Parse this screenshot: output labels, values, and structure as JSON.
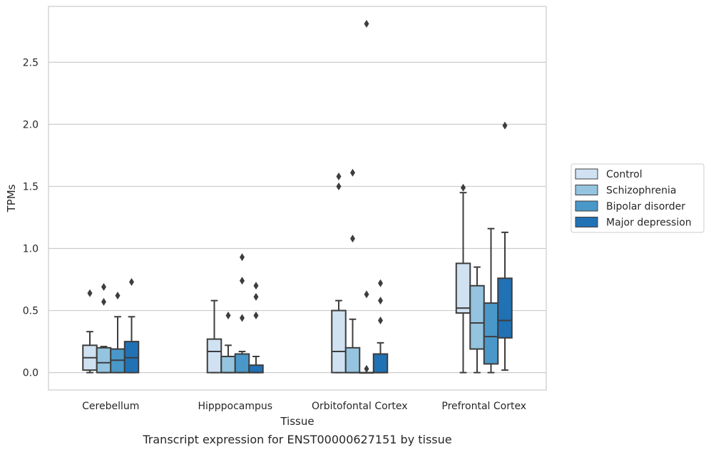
{
  "chart_data": {
    "type": "box",
    "title": "",
    "caption": "Transcript expression for ENST00000627151 by tissue",
    "xlabel": "Tissue",
    "ylabel": "TPMs",
    "ylim": [
      -0.14,
      2.95
    ],
    "yticks": [
      0.0,
      0.5,
      1.0,
      1.5,
      2.0,
      2.5
    ],
    "ytick_labels": [
      "0.0",
      "0.5",
      "1.0",
      "1.5",
      "2.0",
      "2.5"
    ],
    "grid": "horizontal",
    "legend_position": "right",
    "categories": [
      "Cerebellum",
      "Hipppocampus",
      "Orbitofontal Cortex",
      "Prefrontal Cortex"
    ],
    "series": [
      {
        "name": "Control",
        "color": "#d0e1f2",
        "boxes": [
          {
            "whislo": 0.0,
            "q1": 0.02,
            "med": 0.12,
            "q3": 0.22,
            "whishi": 0.33,
            "fliers": [
              0.64
            ]
          },
          {
            "whislo": 0.0,
            "q1": 0.0,
            "med": 0.17,
            "q3": 0.27,
            "whishi": 0.58,
            "fliers": []
          },
          {
            "whislo": 0.0,
            "q1": 0.0,
            "med": 0.17,
            "q3": 0.5,
            "whishi": 0.58,
            "fliers": [
              1.5,
              1.58
            ]
          },
          {
            "whislo": 0.0,
            "q1": 0.48,
            "med": 0.52,
            "q3": 0.88,
            "whishi": 1.45,
            "fliers": [
              1.49
            ]
          }
        ]
      },
      {
        "name": "Schizophrenia",
        "color": "#94c4df",
        "boxes": [
          {
            "whislo": 0.0,
            "q1": 0.0,
            "med": 0.08,
            "q3": 0.2,
            "whishi": 0.21,
            "fliers": [
              0.57,
              0.69
            ]
          },
          {
            "whislo": 0.0,
            "q1": 0.0,
            "med": 0.0,
            "q3": 0.13,
            "whishi": 0.22,
            "fliers": [
              0.46
            ]
          },
          {
            "whislo": 0.0,
            "q1": 0.0,
            "med": 0.0,
            "q3": 0.2,
            "whishi": 0.43,
            "fliers": [
              1.08,
              1.61
            ]
          },
          {
            "whislo": 0.0,
            "q1": 0.19,
            "med": 0.4,
            "q3": 0.7,
            "whishi": 0.85,
            "fliers": []
          }
        ]
      },
      {
        "name": "Bipolar disorder",
        "color": "#4a98c9",
        "boxes": [
          {
            "whislo": 0.0,
            "q1": 0.0,
            "med": 0.1,
            "q3": 0.19,
            "whishi": 0.45,
            "fliers": [
              0.62
            ]
          },
          {
            "whislo": 0.0,
            "q1": 0.0,
            "med": 0.0,
            "q3": 0.15,
            "whishi": 0.17,
            "fliers": [
              0.44,
              0.74,
              0.93
            ]
          },
          {
            "whislo": 0.0,
            "q1": 0.0,
            "med": 0.0,
            "q3": 0.0,
            "whishi": 0.0,
            "fliers": [
              0.03,
              0.63,
              2.81
            ]
          },
          {
            "whislo": 0.0,
            "q1": 0.07,
            "med": 0.29,
            "q3": 0.56,
            "whishi": 1.16,
            "fliers": []
          }
        ]
      },
      {
        "name": "Major depression",
        "color": "#2171b5",
        "boxes": [
          {
            "whislo": 0.0,
            "q1": 0.0,
            "med": 0.12,
            "q3": 0.25,
            "whishi": 0.45,
            "fliers": [
              0.73
            ]
          },
          {
            "whislo": 0.0,
            "q1": 0.0,
            "med": 0.0,
            "q3": 0.06,
            "whishi": 0.13,
            "fliers": [
              0.46,
              0.61,
              0.7
            ]
          },
          {
            "whislo": 0.0,
            "q1": 0.0,
            "med": 0.0,
            "q3": 0.15,
            "whishi": 0.24,
            "fliers": [
              0.42,
              0.58,
              0.72
            ]
          },
          {
            "whislo": 0.02,
            "q1": 0.28,
            "med": 0.42,
            "q3": 0.76,
            "whishi": 1.13,
            "fliers": [
              1.99
            ]
          }
        ]
      }
    ]
  }
}
